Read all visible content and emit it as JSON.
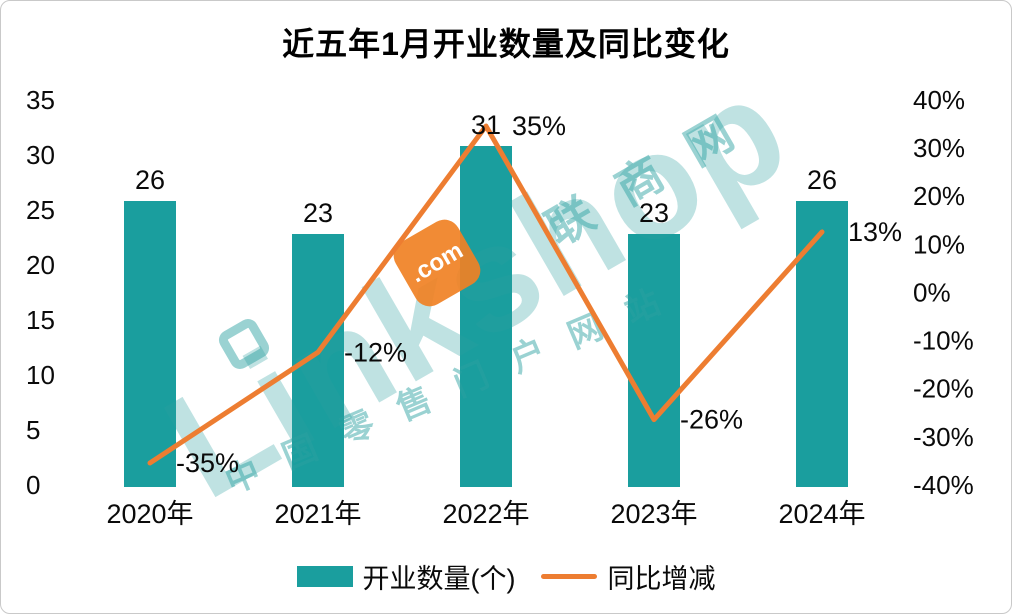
{
  "title": "近五年1月开业数量及同比变化",
  "colors": {
    "bar": "#1A9E9E",
    "line": "#ED7D31",
    "text": "#0A0A0A",
    "watermark": "#2CA0A0",
    "dotcom_bg": "#F08124",
    "border": "#C9C9C9"
  },
  "chart_data": {
    "type": "bar+line combo",
    "title": "近五年1月开业数量及同比变化",
    "categories": [
      "2020年",
      "2021年",
      "2022年",
      "2023年",
      "2024年"
    ],
    "series": [
      {
        "name": "开业数量(个)",
        "type": "bar",
        "axis": "left",
        "values": [
          26,
          23,
          31,
          23,
          26
        ],
        "labels": [
          "26",
          "23",
          "31",
          "23",
          "26"
        ]
      },
      {
        "name": "同比增减",
        "type": "line",
        "axis": "right",
        "values": [
          -35,
          -12,
          35,
          -26,
          13
        ],
        "labels": [
          "-35%",
          "-12%",
          "35%",
          "-26%",
          "13%"
        ]
      }
    ],
    "left_axis": {
      "min": 0,
      "max": 35,
      "step": 5,
      "ticks": [
        "35",
        "30",
        "25",
        "20",
        "15",
        "10",
        "5",
        "0"
      ]
    },
    "right_axis": {
      "min": -40,
      "max": 40,
      "step": 10,
      "ticks": [
        "40%",
        "30%",
        "20%",
        "10%",
        "0%",
        "-10%",
        "-20%",
        "-30%",
        "-40%"
      ]
    },
    "legend_position": "bottom",
    "grid": false
  },
  "watermark": {
    "brand": "Linkshop",
    "dotcom": ".com",
    "site_name": "联商网",
    "slogan": "中国零售门户网站"
  }
}
